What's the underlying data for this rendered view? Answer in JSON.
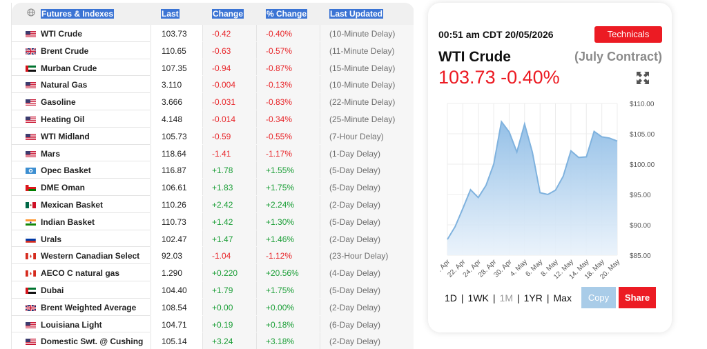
{
  "table": {
    "headers": {
      "name": "Futures & Indexes",
      "last": "Last",
      "change": "Change",
      "pct_change": "% Change",
      "last_updated": "Last Updated"
    },
    "rows": [
      {
        "flag": "us",
        "name": "WTI Crude",
        "last": "103.73",
        "change": "-0.42",
        "pct": "-0.40%",
        "updated": "(10-Minute Delay)",
        "dir": "neg"
      },
      {
        "flag": "gb",
        "name": "Brent Crude",
        "last": "110.65",
        "change": "-0.63",
        "pct": "-0.57%",
        "updated": "(11-Minute Delay)",
        "dir": "neg"
      },
      {
        "flag": "ae",
        "name": "Murban Crude",
        "last": "107.35",
        "change": "-0.94",
        "pct": "-0.87%",
        "updated": "(15-Minute Delay)",
        "dir": "neg"
      },
      {
        "flag": "us",
        "name": "Natural Gas",
        "last": "3.110",
        "change": "-0.004",
        "pct": "-0.13%",
        "updated": "(10-Minute Delay)",
        "dir": "neg"
      },
      {
        "flag": "us",
        "name": "Gasoline",
        "last": "3.666",
        "change": "-0.031",
        "pct": "-0.83%",
        "updated": "(22-Minute Delay)",
        "dir": "neg"
      },
      {
        "flag": "us",
        "name": "Heating Oil",
        "last": "4.148",
        "change": "-0.014",
        "pct": "-0.34%",
        "updated": "(25-Minute Delay)",
        "dir": "neg"
      },
      {
        "flag": "us",
        "name": "WTI Midland",
        "last": "105.73",
        "change": "-0.59",
        "pct": "-0.55%",
        "updated": "(7-Hour Delay)",
        "dir": "neg"
      },
      {
        "flag": "us",
        "name": "Mars",
        "last": "118.64",
        "change": "-1.41",
        "pct": "-1.17%",
        "updated": "(1-Day Delay)",
        "dir": "neg"
      },
      {
        "flag": "opec",
        "name": "Opec Basket",
        "last": "116.87",
        "change": "+1.78",
        "pct": "+1.55%",
        "updated": "(5-Day Delay)",
        "dir": "pos"
      },
      {
        "flag": "om",
        "name": "DME Oman",
        "last": "106.61",
        "change": "+1.83",
        "pct": "+1.75%",
        "updated": "(5-Day Delay)",
        "dir": "pos"
      },
      {
        "flag": "mx",
        "name": "Mexican Basket",
        "last": "110.26",
        "change": "+2.42",
        "pct": "+2.24%",
        "updated": "(2-Day Delay)",
        "dir": "pos"
      },
      {
        "flag": "in",
        "name": "Indian Basket",
        "last": "110.73",
        "change": "+1.42",
        "pct": "+1.30%",
        "updated": "(5-Day Delay)",
        "dir": "pos"
      },
      {
        "flag": "ru",
        "name": "Urals",
        "last": "102.47",
        "change": "+1.47",
        "pct": "+1.46%",
        "updated": "(2-Day Delay)",
        "dir": "pos"
      },
      {
        "flag": "ca",
        "name": "Western Canadian Select",
        "last": "92.03",
        "change": "-1.04",
        "pct": "-1.12%",
        "updated": "(23-Hour Delay)",
        "dir": "neg"
      },
      {
        "flag": "ca",
        "name": "AECO C natural gas",
        "last": "1.290",
        "change": "+0.220",
        "pct": "+20.56%",
        "updated": "(4-Day Delay)",
        "dir": "pos"
      },
      {
        "flag": "ae",
        "name": "Dubai",
        "last": "104.40",
        "change": "+1.79",
        "pct": "+1.75%",
        "updated": "(5-Day Delay)",
        "dir": "pos"
      },
      {
        "flag": "gb",
        "name": "Brent Weighted Average",
        "last": "108.54",
        "change": "+0.00",
        "pct": "+0.00%",
        "updated": "(2-Day Delay)",
        "dir": "pos"
      },
      {
        "flag": "us",
        "name": "Louisiana Light",
        "last": "104.71",
        "change": "+0.19",
        "pct": "+0.18%",
        "updated": "(6-Day Delay)",
        "dir": "pos"
      },
      {
        "flag": "us",
        "name": "Domestic Swt. @ Cushing",
        "last": "105.14",
        "change": "+3.24",
        "pct": "+3.18%",
        "updated": "(2-Day Delay)",
        "dir": "pos"
      }
    ]
  },
  "panel": {
    "timestamp": "00:51 am CDT 20/05/2026",
    "technicals_label": "Technicals",
    "title": "WTI Crude",
    "contract": "(July Contract)",
    "price": "103.73",
    "pct_change": "-0.40%",
    "timeframes": [
      "1D",
      "1WK",
      "1M",
      "1YR",
      "Max"
    ],
    "selected_timeframe": "1M",
    "copy_label": "Copy",
    "share_label": "Share"
  },
  "colors": {
    "accent_red": "#ec1b23",
    "negative": "#e8262a",
    "positive": "#1a9e36",
    "header_highlight": "#3b74d4",
    "chart_line": "#7fb2de",
    "copy_button": "#a9cce8"
  },
  "chart_data": {
    "type": "area",
    "title": "",
    "xlabel": "",
    "ylabel": "",
    "x_ticks": [
      ". Apr",
      "22. Apr",
      "24. Apr",
      "28. Apr",
      "30. Apr",
      "4. May",
      "6. May",
      "8. May",
      "12. May",
      "14. May",
      "18. May",
      "20. May"
    ],
    "y_ticks": [
      "$85.00",
      "$90.00",
      "$95.00",
      "$100.00",
      "$105.00",
      "$110.00"
    ],
    "ylim": [
      85,
      110
    ],
    "series": [
      {
        "values": [
          87.6,
          89.7,
          92.7,
          95.8,
          94.5,
          96.5,
          100.0,
          107.0,
          105.3,
          102.0,
          106.6,
          102.0,
          95.3,
          95.0,
          95.7,
          98.0,
          102.2,
          101.1,
          101.2,
          105.4,
          104.5,
          104.3,
          103.8
        ]
      }
    ]
  }
}
